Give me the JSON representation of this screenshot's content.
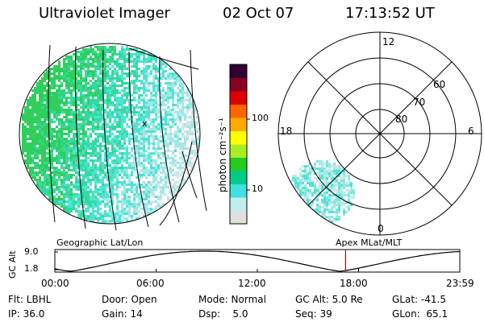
{
  "header": {
    "instrument": "Ultraviolet Imager",
    "date": "02 Oct 07",
    "time": "17:13:52 UT"
  },
  "geo_panel": {
    "caption": "Geographic Lat/Lon",
    "grid_color": "#000000",
    "emission_colors": [
      "#2ecf5a",
      "#35d9a0",
      "#4fe3d4",
      "#9fe8e8",
      "#d8e4e4"
    ]
  },
  "colorbar": {
    "label": "photon cm⁻²s⁻¹",
    "ticks": [
      "100",
      "10"
    ],
    "tick_values": [
      100,
      10
    ],
    "colors": [
      "#e0e0e0",
      "#c0eeee",
      "#40e0e0",
      "#00cc88",
      "#22cc22",
      "#aaee22",
      "#ffff00",
      "#ffaa00",
      "#ff6600",
      "#dd0000",
      "#880022",
      "#330033"
    ]
  },
  "polar_panel": {
    "caption": "Apex MLat/MLT",
    "mlt_labels": {
      "top": "12",
      "left": "18",
      "right": "6",
      "bottom": "0"
    },
    "lat_labels": [
      "60",
      "70",
      "80"
    ]
  },
  "altitude_plot": {
    "ylabel": "GC Alt",
    "yticks": [
      "9.0",
      "1.8"
    ],
    "xticks": [
      "00:00",
      "06:00",
      "12:00",
      "18:00",
      "23:59"
    ],
    "marker_time_hours": 17.23,
    "marker_color": "#dd0000"
  },
  "status": {
    "flt": "Flt: LBHL",
    "ip": "IP: 36.0",
    "door": "Door: Open",
    "gain": "Gain: 14",
    "mode": "Mode: Normal",
    "dsp": "Dsp:    5.0",
    "gcalt": "GC Alt: 5.0 Re",
    "seq": "Seq: 39",
    "glat": "GLat: -41.5",
    "glon": "GLon:  65.1"
  }
}
